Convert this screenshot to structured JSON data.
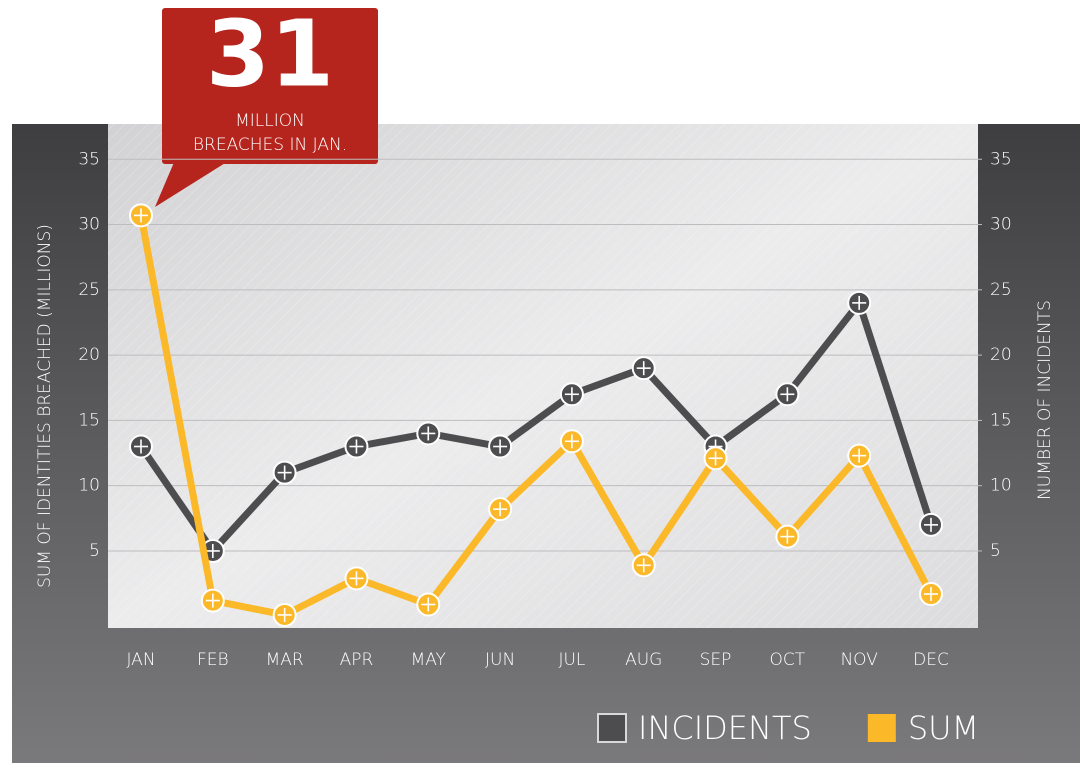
{
  "chart_data": {
    "type": "line",
    "categories": [
      "JAN",
      "FEB",
      "MAR",
      "APR",
      "MAY",
      "JUN",
      "JUL",
      "AUG",
      "SEP",
      "OCT",
      "NOV",
      "DEC"
    ],
    "series": [
      {
        "name": "INCIDENTS",
        "color": "#4d4d4f",
        "axis": "y2",
        "values": [
          13,
          5,
          11,
          13,
          14,
          13,
          17,
          19,
          13,
          17,
          24,
          7
        ]
      },
      {
        "name": "SUM",
        "color": "#fbb829",
        "values": [
          30.7,
          1.2,
          0.1,
          2.9,
          0.9,
          8.2,
          13.4,
          3.9,
          12.1,
          6.1,
          12.3,
          1.7
        ]
      }
    ],
    "ylabel": "SUM OF IDENTITIES BREACHED   (MILLIONS)",
    "y2label": "NUMBER OF INCIDENTS",
    "ylim": [
      -0.9,
      37.7
    ],
    "yticks": [
      5,
      10,
      15,
      20,
      25,
      30,
      35
    ],
    "y2lim": [
      -0.9,
      37.7
    ],
    "y2ticks": [
      5,
      10,
      15,
      20,
      25,
      30,
      35
    ],
    "grid": true,
    "legend": "bottom-right",
    "annotation": {
      "number": "31",
      "line1": "MILLION",
      "line2": "BREACHES IN JAN.",
      "color": "#b5251d"
    }
  }
}
